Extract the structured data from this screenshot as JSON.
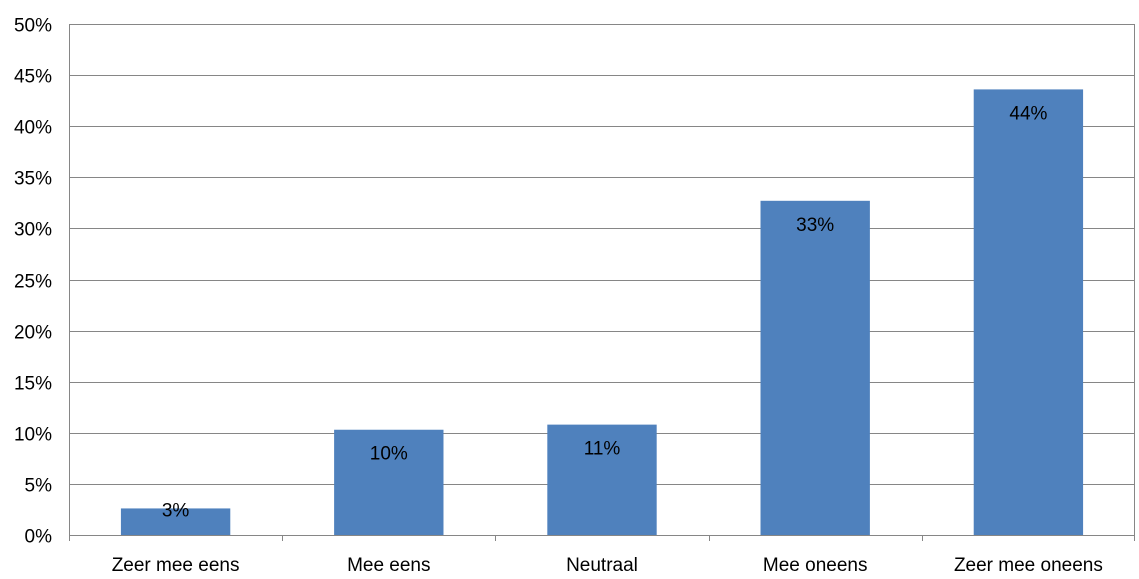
{
  "chart_data": {
    "type": "bar",
    "title": "",
    "xlabel": "",
    "ylabel": "",
    "categories": [
      "Zeer mee eens",
      "Mee eens",
      "Neutraal",
      "Mee oneens",
      "Zeer mee oneens"
    ],
    "values": [
      2.6,
      10.3,
      10.8,
      32.7,
      43.6
    ],
    "data_labels": [
      "3%",
      "10%",
      "11%",
      "33%",
      "44%"
    ],
    "ylim": [
      0,
      50
    ],
    "y_ticks": [
      0,
      5,
      10,
      15,
      20,
      25,
      30,
      35,
      40,
      45,
      50
    ],
    "y_tick_labels": [
      "0%",
      "5%",
      "10%",
      "15%",
      "20%",
      "25%",
      "30%",
      "35%",
      "40%",
      "45%",
      "50%"
    ],
    "grid": true,
    "legend": "none",
    "colors": {
      "bar": "#4F81BD",
      "grid": "#868686",
      "text": "#000000"
    }
  }
}
